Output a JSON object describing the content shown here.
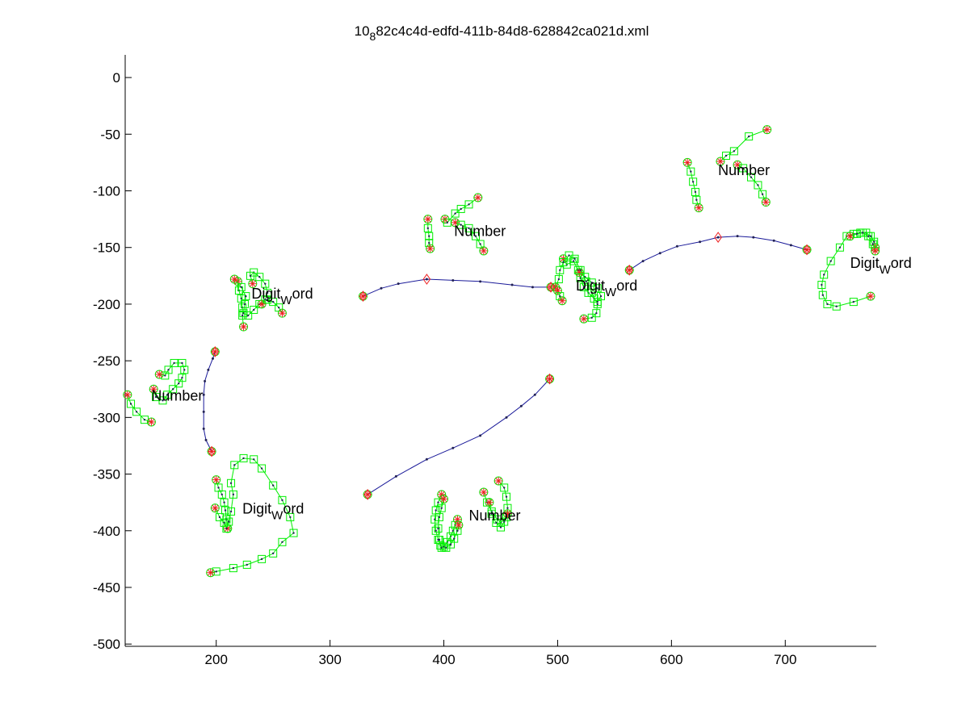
{
  "chart_data": {
    "type": "scatter",
    "title_main": "10",
    "title_sub": "8",
    "title_rest": "82c4c4d-edfd-411b-84d8-628842ca021d.xml",
    "xlim": [
      120,
      780
    ],
    "ylim": [
      -502,
      20
    ],
    "x_ticks": [
      200,
      300,
      400,
      500,
      600,
      700
    ],
    "y_ticks": [
      0,
      -50,
      -100,
      -150,
      -200,
      -250,
      -300,
      -350,
      -400,
      -450,
      -500
    ],
    "grid": false,
    "legend": "none",
    "colors": {
      "stroke": "#00ee00",
      "marker_point": "#222255",
      "endpoint": "#ee2222",
      "connector": "#1a1a99"
    },
    "annotations": [
      {
        "text": "Number",
        "x": 143,
        "y": -285
      },
      {
        "text_main": "Digit",
        "text_sub": "W",
        "text_rest": "ord",
        "x": 231,
        "y": -195
      },
      {
        "text": "Number",
        "x": 409,
        "y": -140
      },
      {
        "text_main": "Digit",
        "text_sub": "W",
        "text_rest": "ord",
        "x": 223,
        "y": -385
      },
      {
        "text": "Number",
        "x": 422,
        "y": -391
      },
      {
        "text_main": "Digit",
        "text_sub": "W",
        "text_rest": "ord",
        "x": 516,
        "y": -188
      },
      {
        "text": "Number",
        "x": 641,
        "y": -86
      },
      {
        "text_main": "Digit",
        "text_sub": "W",
        "text_rest": "ord",
        "x": 757,
        "y": -168
      }
    ],
    "strokes": [
      {
        "name": "number-1-a",
        "points": [
          [
            122,
            -280
          ],
          [
            125,
            -288
          ],
          [
            130,
            -295
          ],
          [
            137,
            -302
          ],
          [
            143,
            -304
          ]
        ]
      },
      {
        "name": "number-1-b",
        "points": [
          [
            145,
            -275
          ],
          [
            147,
            -282
          ],
          [
            153,
            -285
          ],
          [
            157,
            -280
          ],
          [
            162,
            -275
          ],
          [
            167,
            -270
          ],
          [
            170,
            -265
          ],
          [
            172,
            -258
          ],
          [
            170,
            -252
          ],
          [
            163,
            -252
          ],
          [
            158,
            -258
          ],
          [
            155,
            -263
          ],
          [
            150,
            -262
          ]
        ]
      },
      {
        "name": "digitword-1-a",
        "points": [
          [
            219,
            -180
          ],
          [
            220,
            -188
          ],
          [
            222,
            -195
          ],
          [
            223,
            -203
          ],
          [
            223,
            -210
          ],
          [
            224,
            -220
          ]
        ]
      },
      {
        "name": "digitword-1-b",
        "points": [
          [
            216,
            -178
          ],
          [
            222,
            -185
          ],
          [
            226,
            -193
          ],
          [
            225,
            -200
          ],
          [
            224,
            -208
          ],
          [
            228,
            -210
          ],
          [
            233,
            -205
          ],
          [
            238,
            -200
          ],
          [
            243,
            -196
          ],
          [
            245,
            -190
          ],
          [
            243,
            -182
          ],
          [
            238,
            -176
          ],
          [
            233,
            -172
          ],
          [
            230,
            -175
          ],
          [
            232,
            -182
          ]
        ]
      },
      {
        "name": "digitword-1-c",
        "points": [
          [
            240,
            -200
          ],
          [
            245,
            -196
          ],
          [
            250,
            -198
          ],
          [
            255,
            -203
          ],
          [
            258,
            -208
          ]
        ]
      },
      {
        "name": "number-2-a",
        "points": [
          [
            386,
            -125
          ],
          [
            386,
            -133
          ],
          [
            387,
            -140
          ],
          [
            387,
            -146
          ],
          [
            388,
            -151
          ]
        ]
      },
      {
        "name": "number-2-b",
        "points": [
          [
            401,
            -125
          ],
          [
            403,
            -128
          ],
          [
            410,
            -120
          ],
          [
            415,
            -116
          ],
          [
            422,
            -112
          ],
          [
            430,
            -106
          ]
        ]
      },
      {
        "name": "number-2-c",
        "points": [
          [
            410,
            -128
          ],
          [
            415,
            -130
          ],
          [
            422,
            -133
          ],
          [
            428,
            -140
          ],
          [
            432,
            -147
          ],
          [
            435,
            -153
          ]
        ]
      },
      {
        "name": "digitword-2-a",
        "points": [
          [
            200,
            -355
          ],
          [
            202,
            -362
          ],
          [
            205,
            -368
          ],
          [
            207,
            -375
          ],
          [
            208,
            -382
          ],
          [
            209,
            -390
          ],
          [
            210,
            -398
          ]
        ]
      },
      {
        "name": "digitword-2-b",
        "points": [
          [
            199,
            -380
          ],
          [
            203,
            -388
          ],
          [
            207,
            -393
          ],
          [
            209,
            -398
          ],
          [
            211,
            -392
          ],
          [
            213,
            -383
          ],
          [
            215,
            -368
          ],
          [
            213,
            -358
          ],
          [
            216,
            -342
          ],
          [
            224,
            -336
          ],
          [
            233,
            -337
          ],
          [
            240,
            -345
          ],
          [
            250,
            -360
          ],
          [
            258,
            -373
          ],
          [
            265,
            -388
          ],
          [
            268,
            -402
          ],
          [
            258,
            -410
          ],
          [
            250,
            -420
          ],
          [
            240,
            -425
          ],
          [
            227,
            -430
          ],
          [
            215,
            -433
          ],
          [
            200,
            -436
          ],
          [
            195,
            -437
          ]
        ]
      },
      {
        "name": "number-3-a",
        "points": [
          [
            398,
            -368
          ],
          [
            395,
            -375
          ],
          [
            393,
            -382
          ],
          [
            392,
            -390
          ],
          [
            393,
            -400
          ],
          [
            395,
            -408
          ],
          [
            397,
            -413
          ],
          [
            400,
            -414
          ],
          [
            403,
            -410
          ],
          [
            406,
            -405
          ],
          [
            408,
            -400
          ],
          [
            410,
            -395
          ],
          [
            412,
            -390
          ]
        ]
      },
      {
        "name": "number-3-b",
        "points": [
          [
            400,
            -372
          ],
          [
            398,
            -380
          ],
          [
            396,
            -388
          ],
          [
            395,
            -398
          ],
          [
            396,
            -408
          ],
          [
            398,
            -415
          ],
          [
            402,
            -415
          ],
          [
            406,
            -412
          ],
          [
            409,
            -407
          ],
          [
            412,
            -400
          ],
          [
            413,
            -395
          ]
        ]
      },
      {
        "name": "number-3-c",
        "points": [
          [
            435,
            -366
          ],
          [
            438,
            -375
          ],
          [
            442,
            -383
          ],
          [
            447,
            -390
          ],
          [
            450,
            -393
          ],
          [
            455,
            -388
          ],
          [
            456,
            -380
          ],
          [
            455,
            -370
          ],
          [
            453,
            -362
          ],
          [
            448,
            -356
          ]
        ]
      },
      {
        "name": "number-3-d",
        "points": [
          [
            440,
            -375
          ],
          [
            442,
            -385
          ],
          [
            446,
            -393
          ],
          [
            450,
            -397
          ],
          [
            453,
            -392
          ],
          [
            456,
            -385
          ]
        ]
      },
      {
        "name": "digitword-3-a",
        "points": [
          [
            505,
            -160
          ],
          [
            508,
            -165
          ],
          [
            514,
            -162
          ],
          [
            518,
            -170
          ],
          [
            520,
            -177
          ],
          [
            523,
            -185
          ],
          [
            527,
            -190
          ],
          [
            532,
            -195
          ],
          [
            535,
            -198
          ],
          [
            538,
            -193
          ],
          [
            535,
            -186
          ],
          [
            530,
            -181
          ],
          [
            524,
            -176
          ],
          [
            519,
            -172
          ]
        ]
      },
      {
        "name": "digitword-3-b",
        "points": [
          [
            498,
            -185
          ],
          [
            501,
            -178
          ],
          [
            502,
            -170
          ],
          [
            505,
            -163
          ],
          [
            510,
            -157
          ],
          [
            515,
            -160
          ],
          [
            520,
            -170
          ],
          [
            525,
            -180
          ],
          [
            530,
            -190
          ],
          [
            535,
            -200
          ],
          [
            534,
            -208
          ],
          [
            530,
            -212
          ],
          [
            523,
            -213
          ]
        ]
      },
      {
        "name": "digitword-3-c",
        "points": [
          [
            500,
            -188
          ],
          [
            502,
            -193
          ],
          [
            504,
            -197
          ]
        ]
      },
      {
        "name": "number-4-a",
        "points": [
          [
            614,
            -75
          ],
          [
            617,
            -83
          ],
          [
            619,
            -92
          ],
          [
            621,
            -101
          ],
          [
            622,
            -108
          ],
          [
            624,
            -115
          ]
        ]
      },
      {
        "name": "number-4-b",
        "points": [
          [
            643,
            -74
          ],
          [
            648,
            -69
          ],
          [
            655,
            -65
          ],
          [
            668,
            -52
          ],
          [
            684,
            -46
          ]
        ]
      },
      {
        "name": "number-4-c",
        "points": [
          [
            658,
            -77
          ],
          [
            663,
            -80
          ],
          [
            670,
            -88
          ],
          [
            676,
            -95
          ],
          [
            680,
            -103
          ],
          [
            683,
            -110
          ]
        ]
      },
      {
        "name": "digitword-4-a",
        "points": [
          [
            775,
            -193
          ],
          [
            760,
            -198
          ],
          [
            745,
            -202
          ],
          [
            737,
            -200
          ],
          [
            733,
            -192
          ],
          [
            732,
            -183
          ],
          [
            734,
            -174
          ],
          [
            740,
            -162
          ],
          [
            748,
            -150
          ],
          [
            754,
            -140
          ],
          [
            760,
            -138
          ],
          [
            766,
            -137
          ],
          [
            771,
            -137
          ],
          [
            775,
            -140
          ],
          [
            778,
            -145
          ],
          [
            779,
            -150
          ]
        ]
      },
      {
        "name": "digitword-4-b",
        "points": [
          [
            757,
            -140
          ],
          [
            763,
            -138
          ],
          [
            768,
            -137
          ],
          [
            773,
            -140
          ],
          [
            777,
            -147
          ],
          [
            779,
            -153
          ]
        ]
      }
    ],
    "connectors": [
      {
        "name": "connector-1",
        "points": [
          [
            199,
            -242
          ],
          [
            197,
            -248
          ],
          [
            193,
            -258
          ],
          [
            190,
            -268
          ],
          [
            189,
            -280
          ],
          [
            189,
            -295
          ],
          [
            189,
            -310
          ],
          [
            191,
            -320
          ],
          [
            196,
            -330
          ]
        ],
        "marks": [
          [
            199,
            -242
          ],
          [
            196,
            -330
          ]
        ]
      },
      {
        "name": "connector-2",
        "points": [
          [
            329,
            -193
          ],
          [
            345,
            -186
          ],
          [
            360,
            -182
          ],
          [
            385,
            -178
          ],
          [
            408,
            -179
          ],
          [
            432,
            -180
          ],
          [
            460,
            -183
          ],
          [
            478,
            -185
          ],
          [
            494,
            -185
          ]
        ],
        "marks": [
          [
            329,
            -193
          ],
          [
            385,
            -178
          ],
          [
            494,
            -185
          ]
        ]
      },
      {
        "name": "connector-3",
        "points": [
          [
            333,
            -368
          ],
          [
            358,
            -352
          ],
          [
            385,
            -337
          ],
          [
            408,
            -327
          ],
          [
            432,
            -316
          ],
          [
            455,
            -300
          ],
          [
            468,
            -290
          ],
          [
            480,
            -280
          ],
          [
            493,
            -266
          ]
        ],
        "marks": [
          [
            333,
            -368
          ],
          [
            493,
            -266
          ]
        ]
      },
      {
        "name": "connector-4",
        "points": [
          [
            563,
            -170
          ],
          [
            575,
            -162
          ],
          [
            590,
            -155
          ],
          [
            605,
            -149
          ],
          [
            625,
            -145
          ],
          [
            641,
            -141
          ],
          [
            658,
            -140
          ],
          [
            672,
            -141
          ],
          [
            690,
            -144
          ],
          [
            705,
            -148
          ],
          [
            719,
            -152
          ]
        ],
        "marks": [
          [
            563,
            -170
          ],
          [
            641,
            -141
          ],
          [
            719,
            -152
          ]
        ]
      }
    ]
  }
}
